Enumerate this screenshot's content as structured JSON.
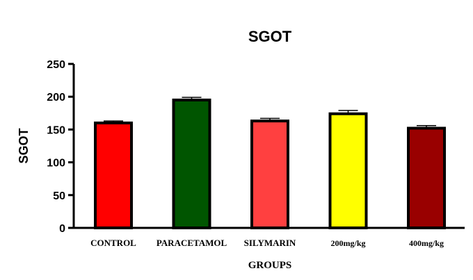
{
  "chart_data": {
    "type": "bar",
    "title": "SGOT",
    "xlabel": "GROUPS",
    "ylabel": "SGOT",
    "ylim": [
      0,
      250
    ],
    "yticks": [
      0,
      50,
      100,
      150,
      200,
      250
    ],
    "categories": [
      "CONTROL",
      "PARACETAMOL",
      "SILYMARIN",
      "200mg/kg",
      "400mg/kg"
    ],
    "values": [
      160,
      195,
      163,
      174,
      152
    ],
    "errors": [
      3,
      4,
      4,
      5,
      4
    ],
    "colors": [
      "#ff0000",
      "#005500",
      "#ff4040",
      "#ffff00",
      "#990000"
    ],
    "grid": false,
    "legend": "none"
  }
}
